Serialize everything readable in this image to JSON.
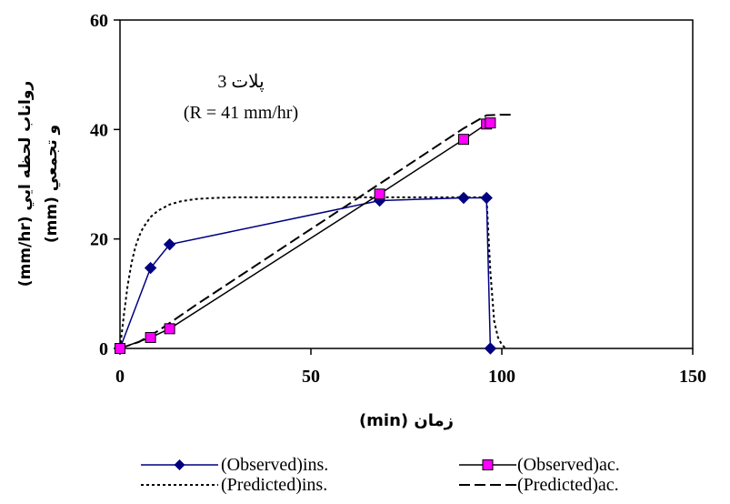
{
  "chart_data": {
    "type": "line",
    "xlabel": "زمان (min)",
    "ylabel_line1": "رواناب لحظه ايي (mm/hr)",
    "ylabel_line2": "و تجمعي (mm)",
    "xlim": [
      0,
      150
    ],
    "ylim": [
      0,
      60
    ],
    "x_ticks": [
      0,
      50,
      100,
      150
    ],
    "y_ticks": [
      0,
      20,
      40,
      60
    ],
    "grid": false,
    "legend_position": "bottom",
    "annotation_line1": "پلات 3",
    "annotation_line2": "(R = 41 mm/hr)",
    "series": [
      {
        "name": "(Observed)ins.",
        "style": "solid",
        "color": "#000080",
        "marker": "diamond",
        "marker_color": "#000080",
        "x": [
          0,
          8,
          13,
          68,
          90,
          96,
          97
        ],
        "y": [
          0,
          14.7,
          19,
          27,
          27.5,
          27.5,
          0
        ]
      },
      {
        "name": "(Observed)ac.",
        "style": "solid",
        "color": "#000000",
        "marker": "square",
        "marker_color": "#ff00ff",
        "x": [
          0,
          8,
          13,
          68,
          90,
          96,
          97
        ],
        "y": [
          0,
          2,
          3.6,
          28.2,
          38.2,
          41,
          41.2
        ]
      },
      {
        "name": "(Predicted)ins.",
        "style": "dotted",
        "color": "#000000",
        "marker": "none",
        "x": [
          0,
          1,
          2,
          3,
          4,
          5,
          6,
          8,
          10,
          13,
          16,
          20,
          25,
          30,
          40,
          60,
          80,
          96,
          97,
          98,
          99,
          100,
          101
        ],
        "y": [
          0,
          6,
          11.5,
          15.5,
          18.5,
          20.5,
          22,
          24,
          25.2,
          26.3,
          26.9,
          27.3,
          27.5,
          27.6,
          27.6,
          27.6,
          27.6,
          27.6,
          14,
          5,
          2,
          0.7,
          0
        ]
      },
      {
        "name": "(Predicted)ac.",
        "style": "dashed",
        "color": "#000000",
        "marker": "none",
        "x": [
          0,
          5,
          10,
          15,
          20,
          30,
          40,
          50,
          60,
          70,
          80,
          90,
          96,
          100,
          103
        ],
        "y": [
          0,
          1.2,
          3.2,
          5.6,
          8,
          12.6,
          17.2,
          21.8,
          26.4,
          31,
          35.6,
          40.2,
          42.6,
          42.7,
          42.7
        ]
      }
    ]
  }
}
